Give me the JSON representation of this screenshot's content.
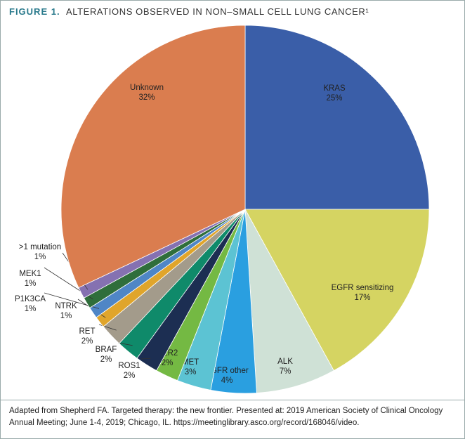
{
  "chart_data": {
    "type": "pie",
    "figure_label": "FIGURE 1.",
    "title": "ALTERATIONS OBSERVED IN NON–SMALL CELL LUNG CANCER¹",
    "categories": [
      "KRAS",
      "EGFR sensitizing",
      "ALK",
      "EGFR other",
      "MET",
      "HER2",
      "ROS1",
      "BRAF",
      "RET",
      "NTRK",
      "P1K3CA",
      "MEK1",
      ">1 mutation",
      "Unknown"
    ],
    "values": [
      25,
      17,
      7,
      4,
      3,
      2,
      2,
      2,
      2,
      1,
      1,
      1,
      1,
      32
    ],
    "value_labels": [
      "25%",
      "17%",
      "7%",
      "4%",
      "3%",
      "2%",
      "2%",
      "2%",
      "2%",
      "1%",
      "1%",
      "1%",
      "1%",
      "32%"
    ],
    "colors": [
      "#3a5ea8",
      "#d5d462",
      "#cfe1d6",
      "#2a9fe0",
      "#5cc3d3",
      "#74b943",
      "#1c2e52",
      "#0f8a6a",
      "#a39b8b",
      "#e0a52b",
      "#4f86c6",
      "#2f6e3b",
      "#8571b1",
      "#da7d4f"
    ],
    "source": "Adapted from Shepherd FA. Targeted therapy: the new frontier. Presented at: 2019 American Society of Clinical Oncology Annual Meeting; June 1-4, 2019; Chicago, IL. https://meetinglibrary.asco.org/record/168046/video."
  }
}
